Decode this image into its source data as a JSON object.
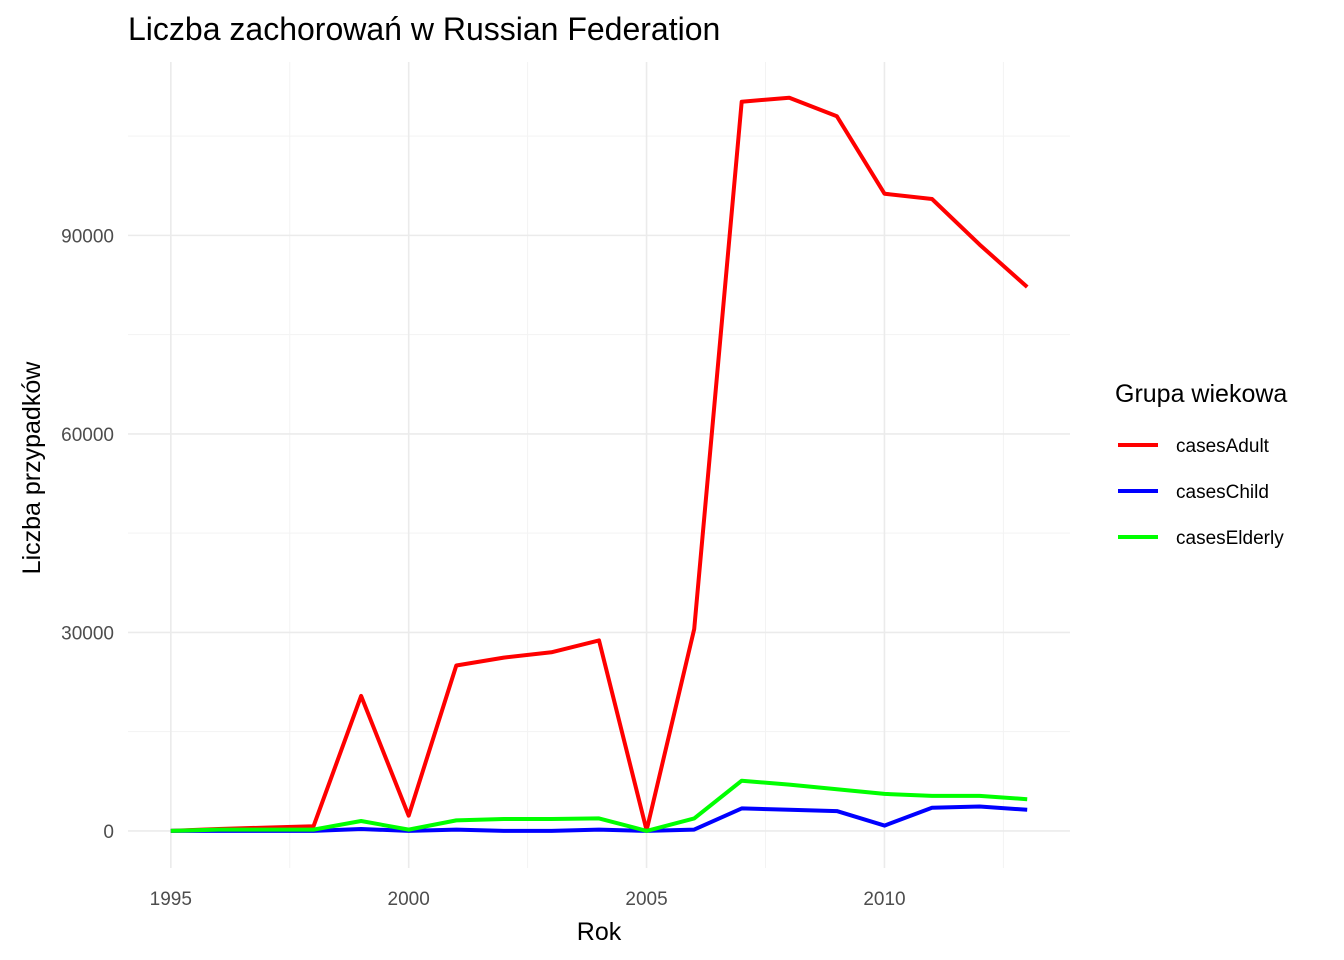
{
  "chart_data": {
    "type": "line",
    "title": "Liczba zachorowań w Russian Federation",
    "xlabel": "Rok",
    "ylabel": "Liczba przypadków",
    "xlim": [
      1994.1,
      2013.9
    ],
    "ylim": [
      -5600,
      116200
    ],
    "x_ticks": [
      1995,
      2000,
      2005,
      2010
    ],
    "y_ticks": [
      0,
      30000,
      60000,
      90000
    ],
    "grid": true,
    "legend": {
      "title": "Grupa wiekowa",
      "position": "right"
    },
    "x": [
      1995,
      1996,
      1997,
      1998,
      1999,
      2000,
      2001,
      2002,
      2003,
      2004,
      2005,
      2006,
      2007,
      2008,
      2009,
      2010,
      2011,
      2012,
      2013
    ],
    "series": [
      {
        "name": "casesAdult",
        "color": "#ff0000",
        "values": [
          0,
          300,
          500,
          700,
          20400,
          2300,
          25000,
          26200,
          27000,
          28800,
          100,
          30500,
          110200,
          110800,
          108000,
          96300,
          95500,
          88600,
          82200
        ]
      },
      {
        "name": "casesChild",
        "color": "#0000ff",
        "values": [
          0,
          0,
          0,
          0,
          300,
          0,
          200,
          0,
          0,
          200,
          0,
          200,
          3400,
          3200,
          3000,
          800,
          3500,
          3700,
          3200
        ]
      },
      {
        "name": "casesElderly",
        "color": "#00ff00",
        "values": [
          0,
          200,
          200,
          200,
          1500,
          200,
          1600,
          1800,
          1800,
          1900,
          0,
          1900,
          7600,
          7000,
          6300,
          5600,
          5300,
          5300,
          4800
        ]
      }
    ]
  }
}
